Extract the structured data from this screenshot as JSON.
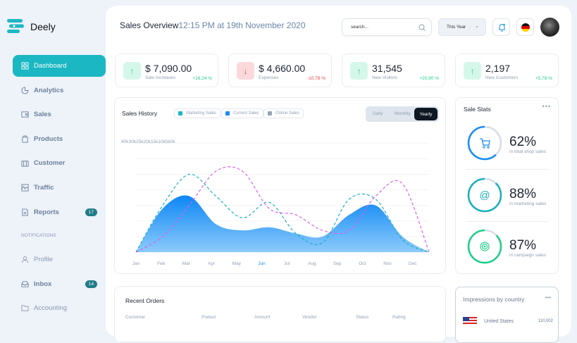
{
  "app": {
    "name": "Deely"
  },
  "sidebar": {
    "items": [
      {
        "label": "Dashboard",
        "icon": "grid-icon",
        "active": true
      },
      {
        "label": "Analytics",
        "icon": "pie-chart-icon"
      },
      {
        "label": "Sales",
        "icon": "wallet-icon"
      },
      {
        "label": "Products",
        "icon": "shopping-bag-icon"
      },
      {
        "label": "Customer",
        "icon": "briefcase-icon"
      },
      {
        "label": "Traffic",
        "icon": "activity-icon"
      },
      {
        "label": "Reports",
        "icon": "file-icon",
        "badge": "17"
      }
    ],
    "section": "NOTIFICATIONS",
    "notif_items": [
      {
        "label": "Profile",
        "icon": "user-icon"
      },
      {
        "label": "Inbox",
        "icon": "inbox-icon",
        "badge": "14"
      },
      {
        "label": "Accounting",
        "icon": "folder-icon"
      }
    ]
  },
  "header": {
    "title": "Sales Overview",
    "subtitle": "12:15 PM at 19th November 2020",
    "search_placeholder": "search...",
    "period": "This Year"
  },
  "stats": [
    {
      "value": "$ 7,090.00",
      "label": "Sale Increases",
      "change": "+16,24 %",
      "trend": "up"
    },
    {
      "value": "$ 4,660.00",
      "label": "Expenses",
      "change": "-10,78 %",
      "trend": "down"
    },
    {
      "value": "31,545",
      "label": "New Visitors",
      "change": "+20,90 %",
      "trend": "up"
    },
    {
      "value": "2,197",
      "label": "New Customers",
      "change": "+5,78 %",
      "trend": "up"
    }
  ],
  "colors": {
    "accent": "#1bb8c3",
    "up": "#1fcf8a",
    "down": "#e8404f",
    "current": "#1b8cf5",
    "marketing": "#1bb8c3",
    "online": "#df5ef0"
  },
  "sales_history": {
    "title": "Sales History",
    "legend": [
      "Marketing Sales",
      "Current Sales",
      "Online Sales"
    ],
    "tabs": [
      "Daily",
      "Monthly",
      "Yearly"
    ],
    "active_tab": "Yearly"
  },
  "chart_data": {
    "type": "area",
    "title": "Sales History",
    "categories": [
      "Jan",
      "Feb",
      "Mar",
      "Apr",
      "May",
      "Jun",
      "Jul",
      "Aug",
      "Sep",
      "Oct",
      "Nov",
      "Dec"
    ],
    "highlight_category": "Jun",
    "y_ticks": [
      "40k",
      "30k",
      "25k",
      "20k",
      "15k",
      "10k",
      "5k",
      "0k"
    ],
    "y_tick_values": [
      40,
      30,
      25,
      20,
      15,
      10,
      5,
      0
    ],
    "grid": true,
    "series": [
      {
        "name": "Marketing Sales",
        "style": "dashed",
        "values": [
          0,
          15,
          25,
          18,
          11,
          16,
          6,
          3,
          17,
          17,
          4,
          0
        ]
      },
      {
        "name": "Current Sales",
        "style": "filled-area",
        "values": [
          0,
          14,
          18,
          9,
          7,
          8,
          6,
          5,
          12,
          15,
          5,
          0
        ]
      },
      {
        "name": "Online Sales",
        "style": "dashed",
        "values": [
          0,
          5,
          15,
          26,
          26,
          14,
          12,
          7,
          7,
          18,
          22,
          0
        ]
      }
    ]
  },
  "sale_stats": {
    "title": "Sale Stats",
    "items": [
      {
        "pct": 62,
        "label": "62%",
        "caption": "in total shop sales",
        "icon": "cart-icon",
        "color": "#1b8cf5"
      },
      {
        "pct": 88,
        "label": "88%",
        "caption": "in marketing sales",
        "icon": "at-sign-icon",
        "color": "#1bb0bd"
      },
      {
        "pct": 87,
        "label": "87%",
        "caption": "in campaign sales",
        "icon": "target-icon",
        "color": "#1fcf8a"
      }
    ]
  },
  "orders": {
    "title": "Recent Orders",
    "columns": [
      "Customer",
      "Poduct",
      "Amount",
      "Vendor",
      "Status",
      "Rating"
    ]
  },
  "impressions": {
    "title": "Impressions by country",
    "rows": [
      {
        "country": "United States",
        "value": "110,002"
      }
    ]
  }
}
